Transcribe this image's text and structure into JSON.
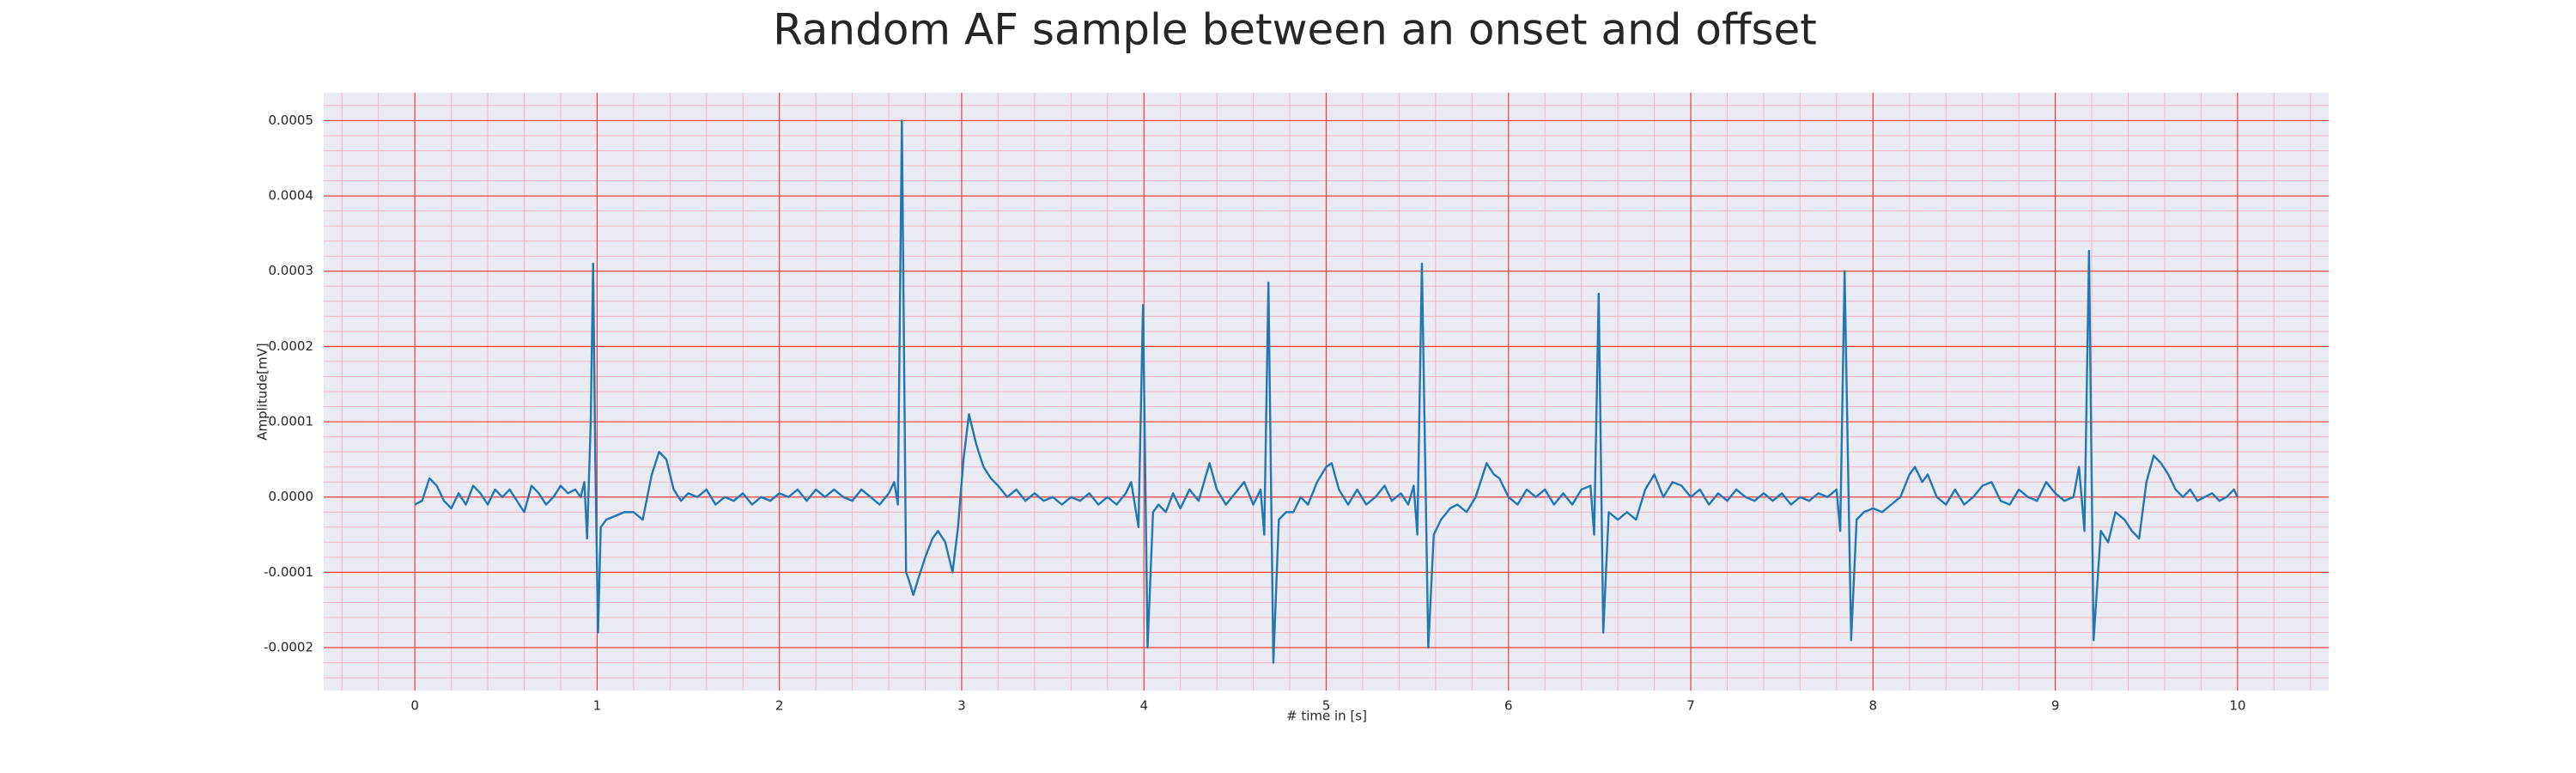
{
  "chart_data": {
    "type": "line",
    "title": "Random AF sample between an onset and offset",
    "xlabel": "# time in [s]",
    "ylabel": "Amplitude[mV]",
    "color": "#1f77b4",
    "x": [
      0,
      0.04,
      0.08,
      0.12,
      0.16,
      0.2,
      0.24,
      0.28,
      0.32,
      0.36,
      0.4,
      0.44,
      0.48,
      0.52,
      0.56,
      0.6,
      0.64,
      0.68,
      0.72,
      0.76,
      0.8,
      0.84,
      0.88,
      0.91,
      0.93,
      0.945,
      0.965,
      0.978,
      0.99,
      1.005,
      1.02,
      1.05,
      1.1,
      1.15,
      1.2,
      1.25,
      1.3,
      1.34,
      1.38,
      1.42,
      1.46,
      1.5,
      1.55,
      1.6,
      1.65,
      1.7,
      1.75,
      1.8,
      1.85,
      1.9,
      1.95,
      2,
      2.05,
      2.1,
      2.15,
      2.2,
      2.25,
      2.3,
      2.35,
      2.4,
      2.45,
      2.5,
      2.55,
      2.6,
      2.63,
      2.65,
      2.672,
      2.695,
      2.71,
      2.735,
      2.76,
      2.8,
      2.84,
      2.87,
      2.91,
      2.95,
      2.98,
      3.01,
      3.04,
      3.08,
      3.12,
      3.16,
      3.2,
      3.25,
      3.3,
      3.35,
      3.4,
      3.45,
      3.5,
      3.55,
      3.6,
      3.65,
      3.7,
      3.75,
      3.8,
      3.85,
      3.9,
      3.93,
      3.97,
      3.995,
      4.02,
      4.05,
      4.08,
      4.12,
      4.16,
      4.2,
      4.25,
      4.3,
      4.36,
      4.4,
      4.45,
      4.5,
      4.55,
      4.6,
      4.64,
      4.66,
      4.683,
      4.71,
      4.74,
      4.78,
      4.82,
      4.86,
      4.9,
      4.95,
      5,
      5.03,
      5.07,
      5.12,
      5.17,
      5.22,
      5.27,
      5.32,
      5.36,
      5.41,
      5.45,
      5.48,
      5.5,
      5.525,
      5.56,
      5.59,
      5.63,
      5.68,
      5.72,
      5.77,
      5.82,
      5.88,
      5.92,
      5.95,
      6,
      6.05,
      6.1,
      6.15,
      6.2,
      6.25,
      6.3,
      6.35,
      6.4,
      6.45,
      6.47,
      6.495,
      6.52,
      6.55,
      6.6,
      6.65,
      6.7,
      6.75,
      6.8,
      6.85,
      6.9,
      6.95,
      7,
      7.05,
      7.1,
      7.15,
      7.2,
      7.25,
      7.3,
      7.35,
      7.4,
      7.45,
      7.5,
      7.55,
      7.6,
      7.65,
      7.7,
      7.75,
      7.8,
      7.82,
      7.844,
      7.88,
      7.91,
      7.95,
      8,
      8.05,
      8.1,
      8.15,
      8.2,
      8.23,
      8.27,
      8.3,
      8.35,
      8.4,
      8.45,
      8.5,
      8.55,
      8.6,
      8.65,
      8.7,
      8.75,
      8.8,
      8.85,
      8.9,
      8.95,
      9,
      9.05,
      9.1,
      9.13,
      9.16,
      9.185,
      9.21,
      9.25,
      9.29,
      9.33,
      9.38,
      9.42,
      9.46,
      9.5,
      9.54,
      9.58,
      9.62,
      9.66,
      9.7,
      9.74,
      9.78,
      9.82,
      9.86,
      9.9,
      9.94,
      9.98,
      10
    ],
    "values": [
      -1e-05,
      -5e-06,
      2.5e-05,
      1.5e-05,
      -5e-06,
      -1.5e-05,
      5e-06,
      -1e-05,
      1.5e-05,
      5e-06,
      -1e-05,
      1e-05,
      0,
      1e-05,
      -5e-06,
      -2e-05,
      1.5e-05,
      5e-06,
      -1e-05,
      0,
      1.5e-05,
      5e-06,
      1e-05,
      0,
      2e-05,
      -5.5e-05,
      0.0001,
      0.00031,
      5e-05,
      -0.00018,
      -4e-05,
      -3e-05,
      -2.5e-05,
      -2e-05,
      -2e-05,
      -3e-05,
      3e-05,
      6e-05,
      5e-05,
      1e-05,
      -5e-06,
      5e-06,
      0,
      1e-05,
      -1e-05,
      0,
      -5e-06,
      5e-06,
      -1e-05,
      0,
      -5e-06,
      5e-06,
      0,
      1e-05,
      -5e-06,
      1e-05,
      0,
      1e-05,
      0,
      -5e-06,
      1e-05,
      0,
      -1e-05,
      5e-06,
      2e-05,
      -1e-05,
      0.0005,
      -0.0001,
      -0.00011,
      -0.00013,
      -0.00011,
      -8e-05,
      -5.5e-05,
      -4.5e-05,
      -6e-05,
      -0.0001,
      -4e-05,
      5e-05,
      0.00011,
      7e-05,
      4e-05,
      2.5e-05,
      1.5e-05,
      0,
      1e-05,
      -5e-06,
      5e-06,
      -5e-06,
      0,
      -1e-05,
      0,
      -5e-06,
      5e-06,
      -1e-05,
      0,
      -1e-05,
      5e-06,
      2e-05,
      -4e-05,
      0.000255,
      -0.0002,
      -2e-05,
      -1e-05,
      -2e-05,
      5e-06,
      -1.5e-05,
      1e-05,
      -5e-06,
      4.5e-05,
      1e-05,
      -1e-05,
      5e-06,
      2e-05,
      -1e-05,
      1e-05,
      -5e-05,
      0.000285,
      -0.00022,
      -3e-05,
      -2e-05,
      -2e-05,
      0,
      -1e-05,
      2e-05,
      4e-05,
      4.5e-05,
      1e-05,
      -1e-05,
      1e-05,
      -1e-05,
      0,
      1.5e-05,
      -5e-06,
      5e-06,
      -1e-05,
      1.5e-05,
      -5e-05,
      0.00031,
      -0.0002,
      -5e-05,
      -3e-05,
      -1.5e-05,
      -1e-05,
      -2e-05,
      0,
      4.5e-05,
      3e-05,
      2.5e-05,
      0,
      -1e-05,
      1e-05,
      0,
      1e-05,
      -1e-05,
      5e-06,
      -1e-05,
      1e-05,
      1.5e-05,
      -5e-05,
      0.00027,
      -0.00018,
      -2e-05,
      -3e-05,
      -2e-05,
      -3e-05,
      1e-05,
      3e-05,
      0,
      2e-05,
      1.5e-05,
      0,
      1e-05,
      -1e-05,
      5e-06,
      -5e-06,
      1e-05,
      0,
      -5e-06,
      5e-06,
      -5e-06,
      5e-06,
      -1e-05,
      0,
      -5e-06,
      5e-06,
      0,
      1e-05,
      -4.5e-05,
      0.0003,
      -0.00019,
      -3e-05,
      -2e-05,
      -1.5e-05,
      -2e-05,
      -1e-05,
      0,
      3e-05,
      4e-05,
      2e-05,
      3e-05,
      0,
      -1e-05,
      1e-05,
      -1e-05,
      0,
      1.5e-05,
      2e-05,
      -5e-06,
      -1e-05,
      1e-05,
      0,
      -5e-06,
      2e-05,
      5e-06,
      -5e-06,
      0,
      4e-05,
      -4.5e-05,
      0.000327,
      -0.00019,
      -4.5e-05,
      -6e-05,
      -2e-05,
      -3e-05,
      -4.5e-05,
      -5.5e-05,
      2e-05,
      5.5e-05,
      4.5e-05,
      3e-05,
      1e-05,
      0,
      1e-05,
      -5e-06,
      0,
      5e-06,
      -5e-06,
      0,
      1e-05,
      0
    ],
    "xlim": [
      -0.5,
      10.5
    ],
    "xticks": [
      0,
      1,
      2,
      3,
      4,
      5,
      6,
      7,
      8,
      9,
      10
    ],
    "ylim": [
      -0.000257,
      0.000537
    ],
    "yticks": [
      {
        "value": -0.0002,
        "label": "-0.0002"
      },
      {
        "value": -0.0001,
        "label": "-0.0001"
      },
      {
        "value": 0,
        "label": "0.0000"
      },
      {
        "value": 0.0001,
        "label": "0.0001"
      },
      {
        "value": 0.0002,
        "label": "0.0002"
      },
      {
        "value": 0.0003,
        "label": "0.0003"
      },
      {
        "value": 0.0004,
        "label": "0.0004"
      },
      {
        "value": 0.0005,
        "label": "0.0005"
      }
    ],
    "minor_xticks": [
      -0.4,
      -0.2,
      0.2,
      0.4,
      0.6,
      0.8,
      1.2,
      1.4,
      1.6,
      1.8,
      2.2,
      2.4,
      2.6,
      2.8,
      3.2,
      3.4,
      3.6,
      3.8,
      4.2,
      4.4,
      4.6,
      4.8,
      5.2,
      5.4,
      5.6,
      5.8,
      6.2,
      6.4,
      6.6,
      6.8,
      7.2,
      7.4,
      7.6,
      7.8,
      8.2,
      8.4,
      8.6,
      8.8,
      9.2,
      9.4,
      9.6,
      9.8,
      10.2,
      10.4
    ],
    "minor_yticks": [
      -0.00024,
      -0.00022,
      -0.00018,
      -0.00016,
      -0.00014,
      -0.00012,
      -8e-05,
      -6e-05,
      -4e-05,
      -2e-05,
      2e-05,
      4e-05,
      6e-05,
      8e-05,
      0.00012,
      0.00014,
      0.00016,
      0.00018,
      0.00022,
      0.00024,
      0.00026,
      0.00028,
      0.00032,
      0.00034,
      0.00036,
      0.00038,
      0.00042,
      0.00044,
      0.00046,
      0.00048,
      0.00052
    ],
    "grid": true,
    "minor_grid": true
  }
}
